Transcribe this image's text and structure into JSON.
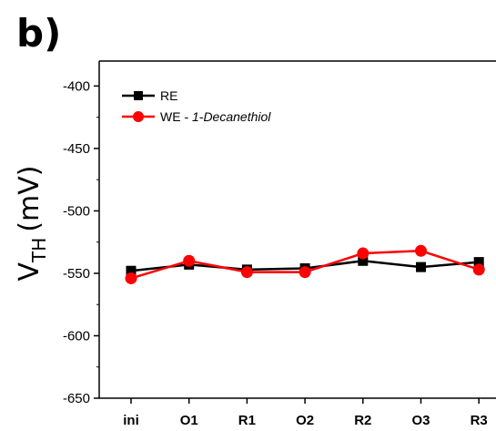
{
  "panel_label": "b)",
  "chart_data": {
    "type": "line",
    "title": "",
    "xlabel": "",
    "ylabel": "V",
    "ylabel_subscript": "TH",
    "ylabel_unit": "(mV)",
    "categories": [
      "ini",
      "O1",
      "R1",
      "O2",
      "R2",
      "O3",
      "R3"
    ],
    "ylim": [
      -650,
      -380
    ],
    "yticks": [
      -650,
      -600,
      -550,
      -500,
      -450,
      -400
    ],
    "legend_position": "top-left",
    "series": [
      {
        "name": "RE",
        "marker": "square",
        "color": "#000000",
        "values": [
          -548,
          -543,
          -547,
          -546,
          -540,
          -545,
          -541
        ]
      },
      {
        "name_prefix": "WE - ",
        "name_italic": "1-Decanethiol",
        "marker": "circle",
        "color": "#ff0000",
        "values": [
          -554,
          -540,
          -549,
          -549,
          -534,
          -532,
          -547
        ]
      }
    ]
  }
}
